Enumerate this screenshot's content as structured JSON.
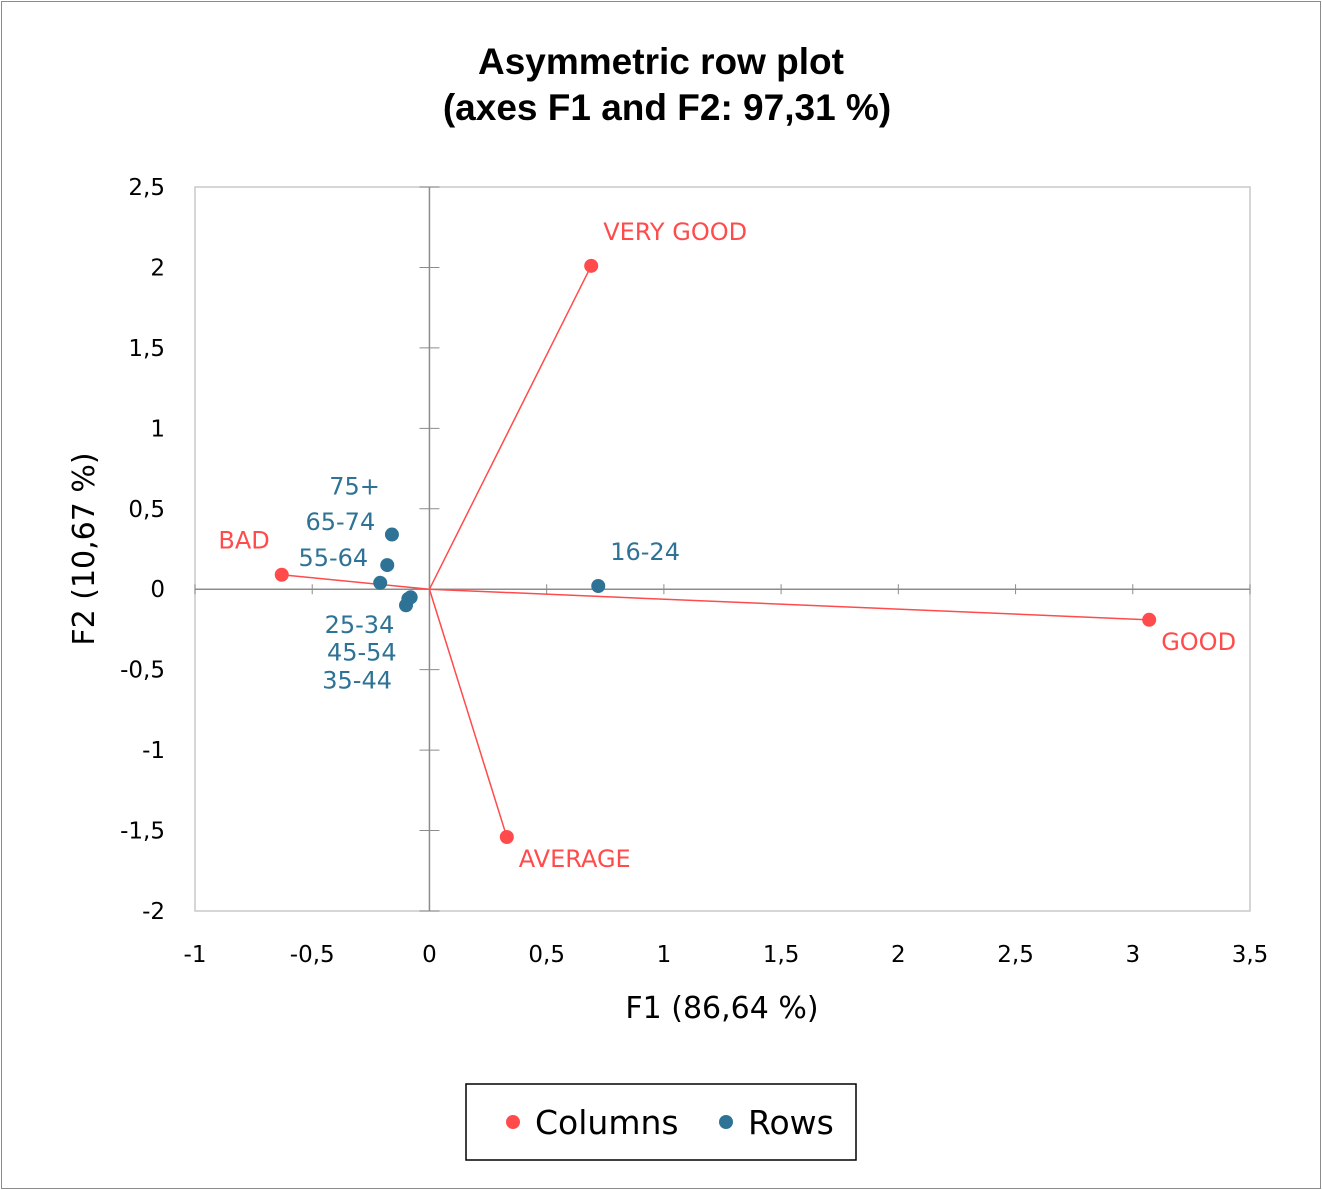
{
  "chart_data": {
    "type": "scatter",
    "title": [
      "Asymmetric row plot",
      "(axes F1 and F2: 97,31 %)"
    ],
    "xlabel": "F1 (86,64 %)",
    "ylabel": "F2 (10,67 %)",
    "xlim": [
      -1,
      3.5
    ],
    "ylim": [
      -2,
      2.5
    ],
    "xticks": [
      "-1",
      "-0,5",
      "0",
      "0,5",
      "1",
      "1,5",
      "2",
      "2,5",
      "3",
      "3,5"
    ],
    "yticks": [
      "-2",
      "-1,5",
      "-1",
      "-0,5",
      "0",
      "0,5",
      "1",
      "1,5",
      "2",
      "2,5"
    ],
    "grid": false,
    "legend_position": "bottom",
    "series": [
      {
        "name": "Columns",
        "color": "#FF4B4B",
        "rays_from_origin": true,
        "points": [
          {
            "label": "VERY GOOD",
            "x": 0.69,
            "y": 2.01
          },
          {
            "label": "GOOD",
            "x": 3.07,
            "y": -0.19
          },
          {
            "label": "BAD",
            "x": -0.63,
            "y": 0.09
          },
          {
            "label": "AVERAGE",
            "x": 0.33,
            "y": -1.54
          }
        ]
      },
      {
        "name": "Rows",
        "color": "#2E7396",
        "points": [
          {
            "label": "16-24",
            "x": 0.72,
            "y": 0.02
          },
          {
            "label": "75+",
            "x": -0.16,
            "y": 0.34
          },
          {
            "label": "65-74",
            "x": -0.18,
            "y": 0.15
          },
          {
            "label": "55-64",
            "x": -0.21,
            "y": 0.04
          },
          {
            "label": "25-34",
            "x": -0.09,
            "y": -0.06
          },
          {
            "label": "45-54",
            "x": -0.08,
            "y": -0.05
          },
          {
            "label": "35-44",
            "x": -0.1,
            "y": -0.1
          }
        ]
      }
    ]
  }
}
